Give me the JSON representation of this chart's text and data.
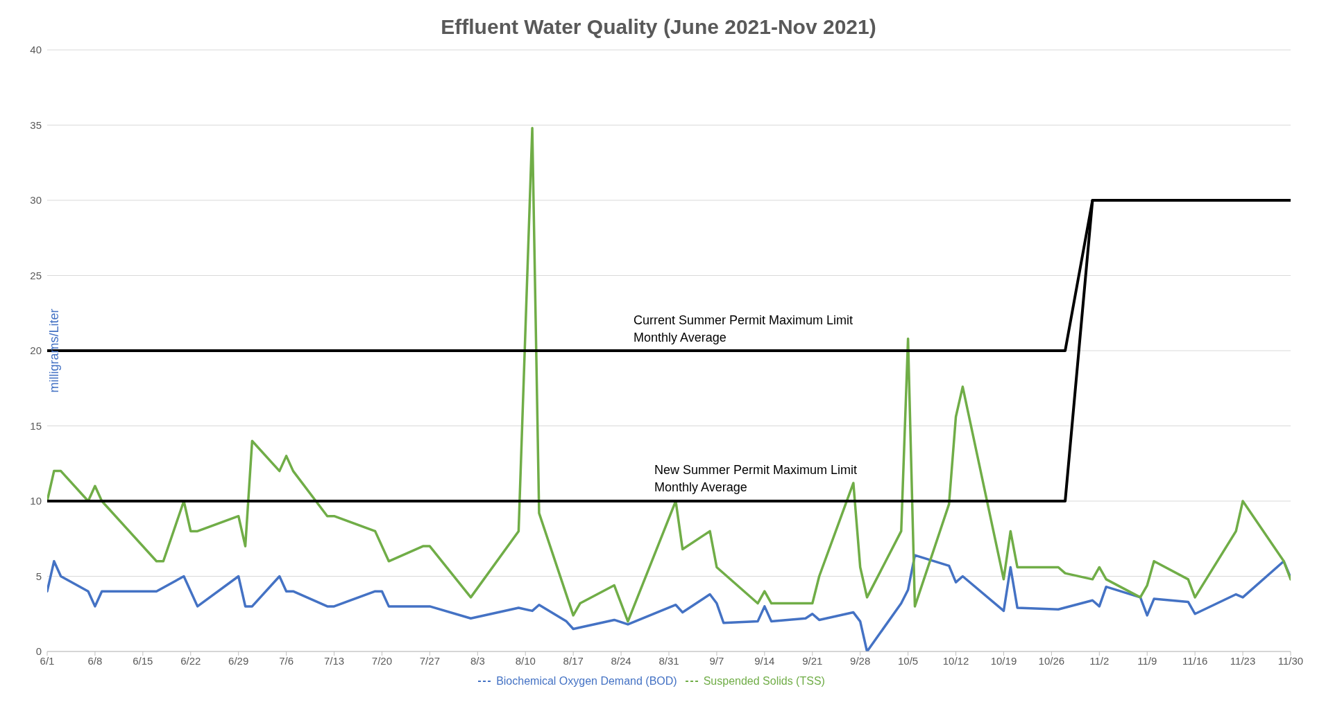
{
  "chart_data": {
    "type": "line",
    "title": "Effluent Water Quality (June 2021-Nov 2021)",
    "ylabel": "milligrams/Liter",
    "xlim": [
      "--06-01",
      "--11-30"
    ],
    "xticks": [
      {
        "value": "--06-01",
        "label": "6/1"
      },
      {
        "value": "--06-08",
        "label": "6/8"
      },
      {
        "value": "--06-15",
        "label": "6/15"
      },
      {
        "value": "--06-22",
        "label": "6/22"
      },
      {
        "value": "--06-29",
        "label": "6/29"
      },
      {
        "value": "--07-06",
        "label": "7/6"
      },
      {
        "value": "--07-13",
        "label": "7/13"
      },
      {
        "value": "--07-20",
        "label": "7/20"
      },
      {
        "value": "--07-27",
        "label": "7/27"
      },
      {
        "value": "--08-03",
        "label": "8/3"
      },
      {
        "value": "--08-10",
        "label": "8/10"
      },
      {
        "value": "--08-17",
        "label": "8/17"
      },
      {
        "value": "--08-24",
        "label": "8/24"
      },
      {
        "value": "--08-31",
        "label": "8/31"
      },
      {
        "value": "--09-07",
        "label": "9/7"
      },
      {
        "value": "--09-14",
        "label": "9/14"
      },
      {
        "value": "--09-21",
        "label": "9/21"
      },
      {
        "value": "--09-28",
        "label": "9/28"
      },
      {
        "value": "--10-05",
        "label": "10/5"
      },
      {
        "value": "--10-12",
        "label": "10/12"
      },
      {
        "value": "--10-19",
        "label": "10/19"
      },
      {
        "value": "--10-26",
        "label": "10/26"
      },
      {
        "value": "--11-02",
        "label": "11/2"
      },
      {
        "value": "--11-09",
        "label": "11/9"
      },
      {
        "value": "--11-16",
        "label": "11/16"
      },
      {
        "value": "--11-23",
        "label": "11/23"
      },
      {
        "value": "--11-30",
        "label": "11/30"
      }
    ],
    "ylim": [
      0,
      40
    ],
    "yticks": [
      0,
      5,
      10,
      15,
      20,
      25,
      30,
      35,
      40
    ],
    "grid": "y",
    "legend": "bottom",
    "line_style": "solid",
    "marker": "none",
    "series": [
      {
        "name": "Biochemical Oxygen Demand (BOD)",
        "color": "#4472c4",
        "x": [
          "--06-01",
          "--06-02",
          "--06-03",
          "--06-07",
          "--06-08",
          "--06-09",
          "--06-17",
          "--06-21",
          "--06-23",
          "--06-29",
          "--06-30",
          "--07-01",
          "--07-05",
          "--07-06",
          "--07-07",
          "--07-12",
          "--07-13",
          "--07-19",
          "--07-20",
          "--07-21",
          "--07-27",
          "--08-02",
          "--08-09",
          "--08-11",
          "--08-12",
          "--08-16",
          "--08-17",
          "--08-23",
          "--08-25",
          "--09-01",
          "--09-02",
          "--09-06",
          "--09-07",
          "--09-08",
          "--09-13",
          "--09-14",
          "--09-15",
          "--09-20",
          "--09-21",
          "--09-22",
          "--09-27",
          "--09-28",
          "--09-29",
          "--10-04",
          "--10-05",
          "--10-06",
          "--10-11",
          "--10-12",
          "--10-13",
          "--10-19",
          "--10-20",
          "--10-21",
          "--10-27",
          "--11-01",
          "--11-02",
          "--11-03",
          "--11-08",
          "--11-09",
          "--11-10",
          "--11-15",
          "--11-16",
          "--11-22",
          "--11-23",
          "--11-29",
          "--11-30"
        ],
        "values": [
          4,
          6,
          5,
          4,
          3,
          4,
          4,
          5,
          3,
          5,
          3,
          3,
          5,
          4,
          4,
          3,
          3,
          4,
          4,
          3,
          3,
          2.2,
          2.9,
          2.7,
          3.1,
          2,
          1.5,
          2.1,
          1.8,
          3.1,
          2.6,
          3.8,
          3.2,
          1.9,
          2,
          3,
          2,
          2.2,
          2.5,
          2.1,
          2.6,
          2,
          0,
          3.2,
          4.1,
          6.4,
          5.7,
          4.6,
          5,
          2.7,
          5.6,
          2.9,
          2.8,
          3.4,
          3,
          4.3,
          3.6,
          2.4,
          3.5,
          3.3,
          2.5,
          3.8,
          3.6,
          6,
          4.9
        ]
      },
      {
        "name": "Suspended Solids (TSS)",
        "color": "#70ad47",
        "x": [
          "--06-01",
          "--06-02",
          "--06-03",
          "--06-07",
          "--06-08",
          "--06-09",
          "--06-17",
          "--06-18",
          "--06-21",
          "--06-22",
          "--06-23",
          "--06-29",
          "--06-30",
          "--07-01",
          "--07-05",
          "--07-06",
          "--07-07",
          "--07-12",
          "--07-13",
          "--07-19",
          "--07-21",
          "--07-26",
          "--07-27",
          "--08-02",
          "--08-09",
          "--08-11",
          "--08-12",
          "--08-17",
          "--08-18",
          "--08-23",
          "--08-25",
          "--09-01",
          "--09-02",
          "--09-06",
          "--09-07",
          "--09-13",
          "--09-14",
          "--09-15",
          "--09-21",
          "--09-22",
          "--09-27",
          "--09-28",
          "--09-29",
          "--10-04",
          "--10-05",
          "--10-06",
          "--10-11",
          "--10-12",
          "--10-13",
          "--10-19",
          "--10-20",
          "--10-21",
          "--10-27",
          "--10-28",
          "--11-01",
          "--11-02",
          "--11-03",
          "--11-08",
          "--11-09",
          "--11-10",
          "--11-15",
          "--11-16",
          "--11-22",
          "--11-23",
          "--11-29",
          "--11-30"
        ],
        "values": [
          10,
          12,
          12,
          10,
          11,
          10,
          6,
          6,
          10,
          8,
          8,
          9,
          7,
          14,
          12,
          13,
          12,
          9,
          9,
          8,
          6,
          7,
          7,
          3.6,
          8,
          34.8,
          9.2,
          2.4,
          3.2,
          4.4,
          2,
          10,
          6.8,
          8,
          5.6,
          3.2,
          4,
          3.2,
          3.2,
          5,
          11.2,
          5.6,
          3.6,
          8,
          20.8,
          3,
          9.8,
          15.6,
          17.6,
          4.8,
          8,
          5.6,
          5.6,
          5.2,
          4.8,
          5.6,
          4.8,
          3.6,
          4.4,
          6,
          4.8,
          3.6,
          8,
          10,
          6,
          4.8
        ]
      },
      {
        "color": "#000000",
        "x": [
          "--06-01",
          "--10-28",
          "--11-01",
          "--11-30"
        ],
        "values": [
          20,
          20,
          30,
          30
        ]
      },
      {
        "color": "#000000",
        "x": [
          "--06-01",
          "--10-28",
          "--11-01"
        ],
        "values": [
          10,
          10,
          30
        ]
      }
    ],
    "annotations": [
      "Current Summer Permit Maximum Limit Monthly Average",
      "New Summer Permit Maximum Limit Monthly Average"
    ]
  }
}
